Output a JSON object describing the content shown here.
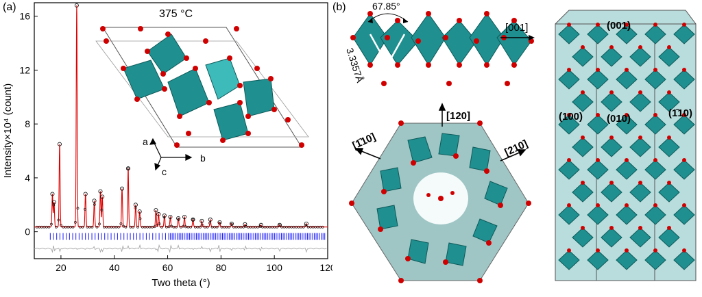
{
  "panel_a": {
    "label": "(a)",
    "temperature": "375 °C",
    "axis_labels": {
      "a": "a",
      "b": "b",
      "c": "c"
    },
    "colors": {
      "observed": "#000000",
      "fit": "#e00000",
      "bragg": "#1a1aff",
      "difference": "#a8a8a8",
      "octahedra": "#1f8f8f",
      "oxygen": "#d00000"
    },
    "chart_data": {
      "type": "scatter",
      "xlabel": "Two theta (°)",
      "ylabel": "Intensity×10⁴ (count)",
      "xlim": [
        10,
        120
      ],
      "ylim": [
        -2,
        17
      ],
      "xticks": [
        20,
        40,
        60,
        80,
        100,
        120
      ],
      "yticks": [
        0,
        4,
        8,
        12,
        16
      ],
      "background": 0.35,
      "peaks": [
        {
          "x": 16.8,
          "y": 2.8
        },
        {
          "x": 17.4,
          "y": 2.2
        },
        {
          "x": 19.5,
          "y": 6.5
        },
        {
          "x": 25.9,
          "y": 16.8
        },
        {
          "x": 29.2,
          "y": 2.8
        },
        {
          "x": 32.5,
          "y": 2.3
        },
        {
          "x": 34.8,
          "y": 3.0
        },
        {
          "x": 35.5,
          "y": 2.6
        },
        {
          "x": 42.9,
          "y": 3.2
        },
        {
          "x": 45.2,
          "y": 4.7
        },
        {
          "x": 48.0,
          "y": 2.0
        },
        {
          "x": 49.5,
          "y": 1.5
        },
        {
          "x": 55.6,
          "y": 1.6
        },
        {
          "x": 56.6,
          "y": 1.3
        },
        {
          "x": 58.8,
          "y": 1.2
        },
        {
          "x": 61.0,
          "y": 1.1
        },
        {
          "x": 64.0,
          "y": 1.0
        },
        {
          "x": 66.3,
          "y": 1.1
        },
        {
          "x": 69.5,
          "y": 0.9
        },
        {
          "x": 72.8,
          "y": 0.8
        },
        {
          "x": 76.0,
          "y": 0.9
        },
        {
          "x": 79.5,
          "y": 0.7
        },
        {
          "x": 84.0,
          "y": 0.6
        },
        {
          "x": 89.0,
          "y": 0.55
        },
        {
          "x": 95.0,
          "y": 0.5
        },
        {
          "x": 102.0,
          "y": 0.5
        },
        {
          "x": 112.0,
          "y": 0.6
        }
      ],
      "bragg_y": -0.35,
      "difference_y": -1.25
    }
  },
  "panel_b": {
    "label": "(b)",
    "angle": "67.85°",
    "distance": "3.3357Å",
    "chain_direction": "[001]",
    "directions": {
      "d120": "[120]",
      "d110": "[1̄10]",
      "d210": "[210]"
    },
    "faces": {
      "f001": "(001)",
      "f100": "(100)",
      "f010": "(010)",
      "f1b10": "(1̄10)"
    }
  }
}
